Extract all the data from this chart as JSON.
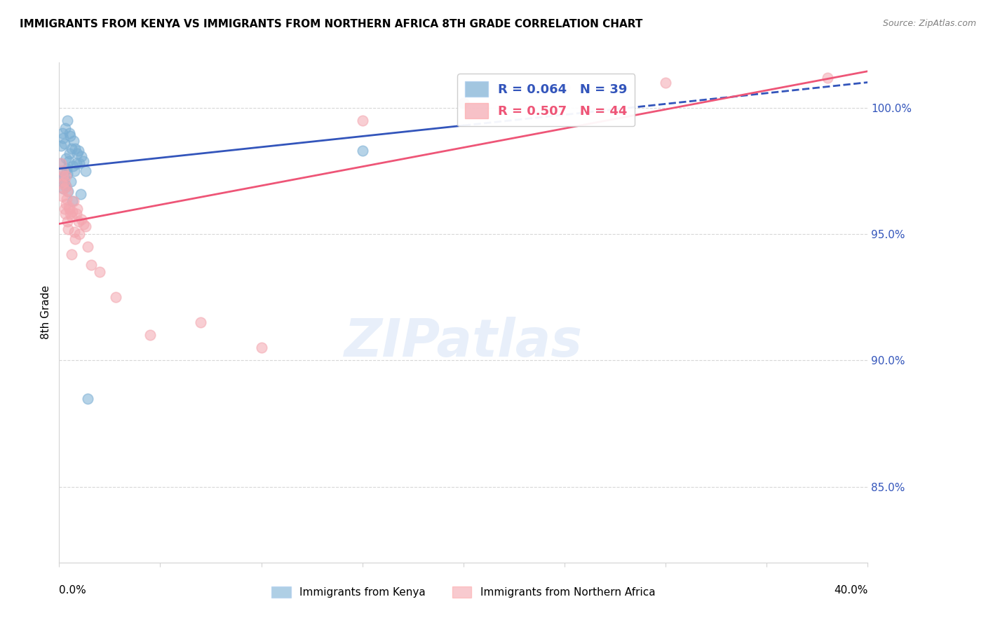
{
  "title": "IMMIGRANTS FROM KENYA VS IMMIGRANTS FROM NORTHERN AFRICA 8TH GRADE CORRELATION CHART",
  "source": "Source: ZipAtlas.com",
  "ylabel": "8th Grade",
  "xmin": 0.0,
  "xmax": 40.0,
  "ymin": 82.0,
  "ymax": 101.8,
  "yticks": [
    85.0,
    90.0,
    95.0,
    100.0
  ],
  "ytick_labels": [
    "85.0%",
    "90.0%",
    "95.0%",
    "100.0%"
  ],
  "legend_R1": "R = 0.064",
  "legend_N1": "N = 39",
  "legend_R2": "R = 0.507",
  "legend_N2": "N = 44",
  "legend_label1": "Immigrants from Kenya",
  "legend_label2": "Immigrants from Northern Africa",
  "color_blue": "#7BAFD4",
  "color_pink": "#F4A7B0",
  "color_blue_line": "#3355BB",
  "color_pink_line": "#EE5577",
  "color_blue_text": "#3355BB",
  "color_pink_text": "#EE5577",
  "kenya_x": [
    0.05,
    0.08,
    0.1,
    0.12,
    0.15,
    0.18,
    0.2,
    0.22,
    0.25,
    0.28,
    0.3,
    0.32,
    0.35,
    0.38,
    0.4,
    0.42,
    0.45,
    0.48,
    0.5,
    0.52,
    0.55,
    0.58,
    0.6,
    0.65,
    0.68,
    0.7,
    0.75,
    0.8,
    0.85,
    0.9,
    0.95,
    1.0,
    1.05,
    1.1,
    1.2,
    1.3,
    1.4,
    15.0,
    20.0
  ],
  "kenya_y": [
    97.8,
    97.5,
    98.5,
    97.2,
    99.0,
    96.8,
    98.8,
    97.3,
    98.6,
    97.0,
    99.2,
    98.0,
    96.9,
    97.6,
    99.5,
    97.4,
    96.7,
    97.9,
    99.0,
    98.2,
    98.9,
    97.1,
    98.4,
    96.3,
    97.7,
    98.7,
    97.5,
    98.4,
    97.8,
    98.2,
    98.3,
    97.8,
    96.6,
    98.1,
    97.9,
    97.5,
    88.5,
    98.3,
    100.2
  ],
  "n_africa_x": [
    0.08,
    0.12,
    0.15,
    0.18,
    0.2,
    0.22,
    0.25,
    0.28,
    0.3,
    0.32,
    0.35,
    0.38,
    0.4,
    0.42,
    0.45,
    0.5,
    0.55,
    0.6,
    0.65,
    0.7,
    0.75,
    0.8,
    0.85,
    0.9,
    0.95,
    1.0,
    1.1,
    1.2,
    1.3,
    1.4,
    2.0,
    2.8,
    4.5,
    7.0,
    10.0,
    15.0,
    20.0,
    25.0,
    30.0,
    38.0,
    0.32,
    0.48,
    0.62,
    1.6
  ],
  "n_africa_y": [
    97.8,
    97.0,
    96.5,
    97.5,
    97.3,
    96.8,
    97.1,
    96.0,
    95.8,
    96.2,
    97.3,
    96.4,
    95.5,
    96.7,
    95.2,
    96.0,
    95.8,
    95.7,
    95.9,
    96.3,
    95.1,
    94.8,
    95.8,
    96.0,
    95.5,
    95.0,
    95.6,
    95.4,
    95.3,
    94.5,
    93.5,
    92.5,
    91.0,
    91.5,
    90.5,
    99.5,
    100.2,
    100.8,
    101.0,
    101.2,
    96.9,
    96.1,
    94.2,
    93.8
  ]
}
